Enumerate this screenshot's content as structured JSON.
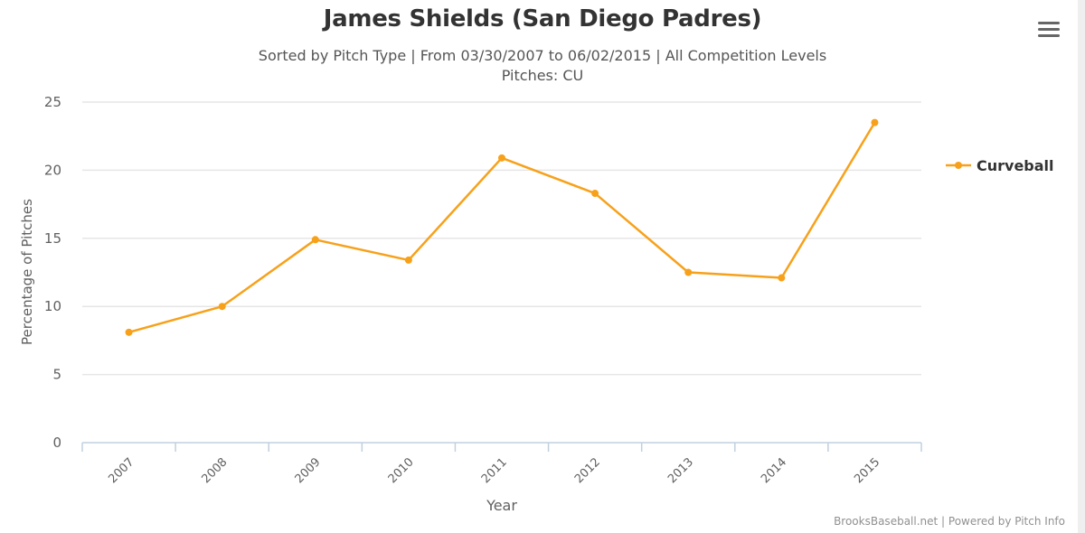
{
  "header": {
    "title": "James Shields (San Diego Padres)",
    "subtitle_line1": "Sorted by Pitch Type | From 03/30/2007 to 06/02/2015 | All Competition Levels",
    "subtitle_line2": "Pitches: CU"
  },
  "menu": {
    "icon": "hamburger-menu-icon"
  },
  "legend": {
    "items": [
      {
        "label": "Curveball",
        "color": "#f7a11a"
      }
    ]
  },
  "axes": {
    "x_title": "Year",
    "y_title": "Percentage of Pitches",
    "y_ticks": [
      "0",
      "5",
      "10",
      "15",
      "20",
      "25"
    ],
    "x_ticks": [
      "2007",
      "2008",
      "2009",
      "2010",
      "2011",
      "2012",
      "2013",
      "2014",
      "2015"
    ]
  },
  "credits": "BrooksBaseball.net | Powered by Pitch Info",
  "colors": {
    "series": "#f7a11a",
    "grid": "#e6e6e6",
    "axis": "#c0d0e0",
    "text": "#606060"
  },
  "chart_data": {
    "type": "line",
    "title": "James Shields (San Diego Padres)",
    "subtitle": "Sorted by Pitch Type | From 03/30/2007 to 06/02/2015 | All Competition Levels / Pitches: CU",
    "categories": [
      "2007",
      "2008",
      "2009",
      "2010",
      "2011",
      "2012",
      "2013",
      "2014",
      "2015"
    ],
    "series": [
      {
        "name": "Curveball",
        "color": "#f7a11a",
        "values": [
          8.1,
          10.0,
          14.9,
          13.4,
          20.9,
          18.3,
          12.5,
          12.1,
          23.5
        ]
      }
    ],
    "xlabel": "Year",
    "ylabel": "Percentage of Pitches",
    "ylim": [
      0,
      25
    ],
    "yticks": [
      0,
      5,
      10,
      15,
      20,
      25
    ],
    "grid": true,
    "legend_position": "right"
  }
}
